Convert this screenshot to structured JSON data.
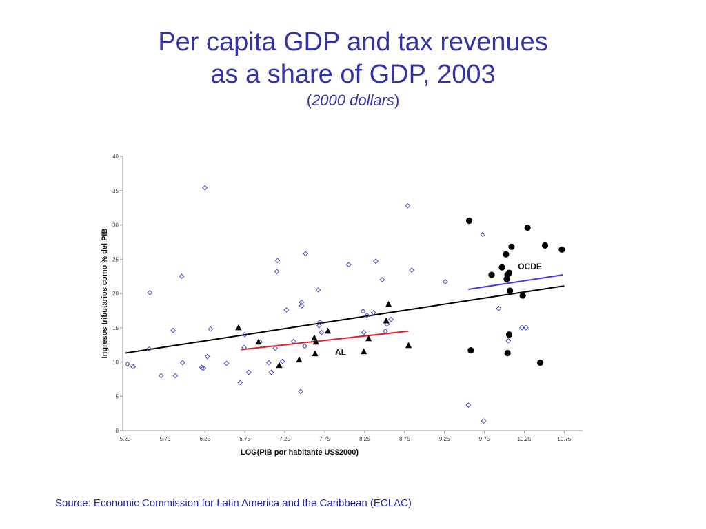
{
  "title": {
    "line1": "Per capita GDP and tax revenues",
    "line2": "as a share of GDP, 2003",
    "subtitle_open": "(",
    "subtitle_italic": "2000 dollars",
    "subtitle_close": ")"
  },
  "source": "Source: Economic Commission for Latin America and the Caribbean (ECLAC)",
  "colors": {
    "text": "#3333a8",
    "diamond": "#4848b8",
    "al_line": "#e0202c",
    "ocde_line": "#5030e0",
    "trend_line": "#000000",
    "axis": "#999999"
  },
  "chart_data": {
    "type": "scatter",
    "xlabel": "LOG(PIB por habitante US$2000)",
    "ylabel": "Ingresos tributarios como % del PIB",
    "xlim": [
      5.22,
      10.98
    ],
    "ylim": [
      0,
      40
    ],
    "xticks": [
      5.25,
      5.75,
      6.25,
      6.75,
      7.25,
      7.75,
      8.25,
      8.75,
      9.25,
      9.75,
      10.25,
      10.75
    ],
    "xtick_labels": [
      "5.25",
      "5.75",
      "6.25",
      "6.75",
      "7.25",
      "7.75",
      "8.25",
      "8.75",
      "9.25",
      "9.75",
      "10.25",
      "10.75"
    ],
    "yticks": [
      0,
      5,
      10,
      15,
      20,
      25,
      30,
      35,
      40
    ],
    "ytick_labels": [
      "0",
      "5",
      "10",
      "15",
      "20",
      "25",
      "30",
      "35",
      "40"
    ],
    "grid": false,
    "series": [
      {
        "marker": "diamond-open",
        "points": [
          [
            5.28,
            9.7
          ],
          [
            5.35,
            9.3
          ],
          [
            5.55,
            11.9
          ],
          [
            5.56,
            20.1
          ],
          [
            5.7,
            8.0
          ],
          [
            5.85,
            14.6
          ],
          [
            5.88,
            8.0
          ],
          [
            5.96,
            22.5
          ],
          [
            5.97,
            9.9
          ],
          [
            6.21,
            9.2
          ],
          [
            6.23,
            9.1
          ],
          [
            6.25,
            35.4
          ],
          [
            6.28,
            10.8
          ],
          [
            6.32,
            14.8
          ],
          [
            6.52,
            9.8
          ],
          [
            6.69,
            7.0
          ],
          [
            6.74,
            12.1
          ],
          [
            6.75,
            14.0
          ],
          [
            6.8,
            8.5
          ],
          [
            6.94,
            12.9
          ],
          [
            7.05,
            9.9
          ],
          [
            7.08,
            8.5
          ],
          [
            7.13,
            12.0
          ],
          [
            7.15,
            23.2
          ],
          [
            7.16,
            24.8
          ],
          [
            7.22,
            10.1
          ],
          [
            7.27,
            17.6
          ],
          [
            7.36,
            13.0
          ],
          [
            7.45,
            5.7
          ],
          [
            7.46,
            18.7
          ],
          [
            7.46,
            18.2
          ],
          [
            7.51,
            25.8
          ],
          [
            7.5,
            12.3
          ],
          [
            7.67,
            20.5
          ],
          [
            7.69,
            15.8
          ],
          [
            7.68,
            15.3
          ],
          [
            7.71,
            14.3
          ],
          [
            8.05,
            24.2
          ],
          [
            8.23,
            17.4
          ],
          [
            8.24,
            14.3
          ],
          [
            8.28,
            16.8
          ],
          [
            8.36,
            17.2
          ],
          [
            8.39,
            24.7
          ],
          [
            8.47,
            22.0
          ],
          [
            8.51,
            14.5
          ],
          [
            8.53,
            15.5
          ],
          [
            8.58,
            16.2
          ],
          [
            8.79,
            32.8
          ],
          [
            8.84,
            23.4
          ],
          [
            9.26,
            21.7
          ],
          [
            9.55,
            3.7
          ],
          [
            9.73,
            28.6
          ],
          [
            9.74,
            1.4
          ],
          [
            9.93,
            17.8
          ],
          [
            10.05,
            13.1
          ],
          [
            10.22,
            15.0
          ],
          [
            10.27,
            15.0
          ]
        ]
      },
      {
        "name": "AL",
        "marker": "triangle",
        "points": [
          [
            6.67,
            15.0
          ],
          [
            6.92,
            12.9
          ],
          [
            7.18,
            9.5
          ],
          [
            7.43,
            10.3
          ],
          [
            7.62,
            13.5
          ],
          [
            7.64,
            12.9
          ],
          [
            7.63,
            11.2
          ],
          [
            7.79,
            14.5
          ],
          [
            8.24,
            11.5
          ],
          [
            8.3,
            13.4
          ],
          [
            8.52,
            16.0
          ],
          [
            8.55,
            18.4
          ],
          [
            8.8,
            12.4
          ]
        ]
      },
      {
        "name": "OCDE",
        "marker": "circle",
        "points": [
          [
            9.56,
            30.6
          ],
          [
            9.58,
            11.7
          ],
          [
            9.84,
            22.7
          ],
          [
            9.97,
            23.8
          ],
          [
            10.02,
            25.7
          ],
          [
            10.03,
            22.1
          ],
          [
            10.04,
            22.7
          ],
          [
            10.06,
            23.0
          ],
          [
            10.07,
            20.4
          ],
          [
            10.09,
            26.8
          ],
          [
            10.06,
            14.0
          ],
          [
            10.04,
            11.3
          ],
          [
            10.23,
            19.7
          ],
          [
            10.29,
            29.6
          ],
          [
            10.51,
            27.0
          ],
          [
            10.45,
            9.9
          ],
          [
            10.72,
            26.4
          ]
        ]
      }
    ],
    "lines": [
      {
        "name": "trend",
        "x": [
          5.25,
          10.75
        ],
        "y": [
          11.3,
          21.1
        ]
      },
      {
        "name": "AL",
        "x": [
          6.7,
          8.8
        ],
        "y": [
          11.8,
          14.5
        ]
      },
      {
        "name": "OCDE",
        "x": [
          9.55,
          10.73
        ],
        "y": [
          20.6,
          22.7
        ]
      }
    ],
    "annotations": [
      {
        "text": "OCDE",
        "x": 10.17,
        "y": 23.5
      },
      {
        "text": "AL",
        "x": 7.88,
        "y": 11.0
      }
    ]
  }
}
